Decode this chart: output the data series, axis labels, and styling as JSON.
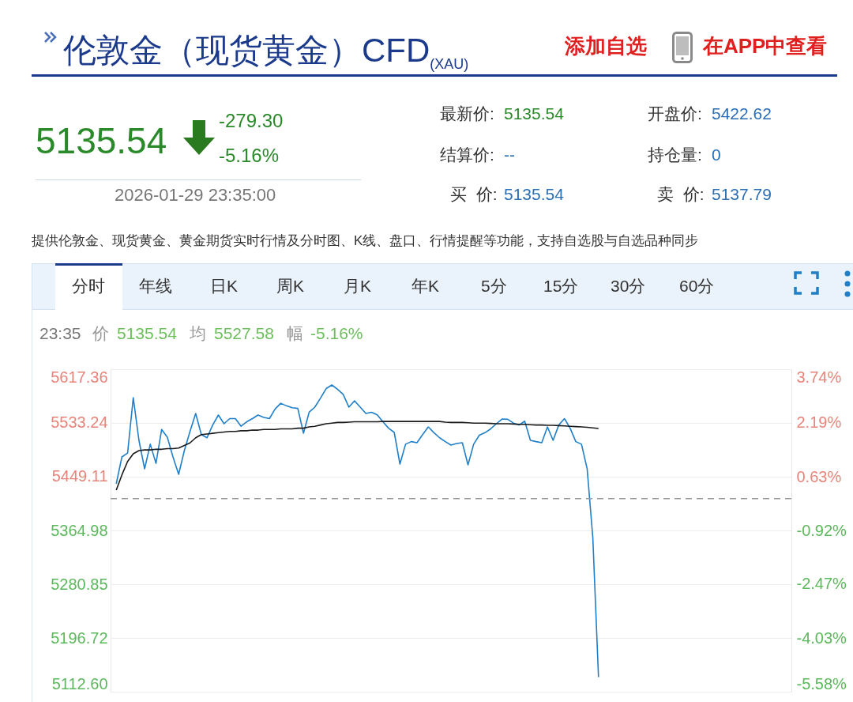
{
  "chart_data": {
    "type": "line",
    "title": "伦敦金（现货黄金）CFD$_{(XAU)}$",
    "annotations": [
      "添加自选",
      "在APP中查看",
      "5135.54",
      "-279.30",
      "-5.16%",
      "2026-01-29 23:35:00",
      "最新价:",
      "5135.54",
      "开盘价:",
      "5422.62",
      "结算价:",
      "--",
      "持仓量:",
      "0",
      "买  价:",
      "5135.54",
      "卖  价:",
      "5137.79",
      "提供伦敦金、现货黄金、黄金期货实时行情及分时图、K线、盘口、行情提醒等功能，支持自选股与自选品种同步",
      "分时",
      "年线",
      "日K",
      "周K",
      "月K",
      "年K",
      "5分",
      "15分",
      "30分",
      "60分",
      "23:35",
      "价",
      "5135.54",
      "均",
      "5527.58",
      "幅",
      "-5.16%"
    ],
    "categories": [
      null,
      null,
      null,
      null,
      null,
      null,
      null,
      null,
      null,
      null,
      null,
      null,
      null,
      null,
      null,
      null,
      null,
      null,
      null,
      null,
      null,
      null,
      null,
      null,
      null,
      null,
      null,
      null,
      null,
      null,
      null,
      null,
      null,
      null,
      null,
      null,
      null,
      null,
      null,
      null,
      null,
      null,
      null,
      null,
      null,
      null,
      null,
      null,
      null,
      null,
      null,
      null,
      null,
      null,
      null,
      null,
      null,
      null,
      null,
      null,
      null,
      null,
      null,
      null,
      null,
      null,
      null,
      null,
      null,
      null,
      null,
      null,
      null,
      null,
      null,
      null,
      null,
      null,
      null,
      null,
      null,
      null,
      null,
      null,
      null,
      null,
      null,
      null,
      null,
      null,
      null,
      null,
      null,
      null,
      null,
      null,
      null,
      null,
      null,
      null,
      null,
      null,
      null,
      null,
      null,
      null,
      null,
      null,
      null,
      null,
      null,
      null,
      null,
      null,
      null,
      null,
      null,
      null,
      null,
      null,
      null
    ],
    "series": [
      {
        "color": "#1f7fc9",
        "values": [
          null,
          5438,
          5480,
          5486,
          5572.8,
          5506,
          5461.5,
          5500,
          5470,
          5523,
          5511,
          5480,
          5452.8,
          5490,
          5520,
          5548,
          5515,
          5510,
          5530,
          5545.6,
          5532,
          5540,
          5540,
          5528,
          5535,
          5540,
          5545.6,
          5542,
          5540,
          5555,
          5564,
          5560,
          5557,
          5556,
          5517.2,
          5550,
          5558,
          5572,
          5587,
          5592.6,
          5586,
          5578,
          5558,
          5567.9,
          5558,
          5548,
          5550,
          5546,
          5535,
          5525,
          5518.4,
          5468.9,
          5500,
          5504,
          5502.3,
          5515,
          5527,
          5518,
          5510,
          5504,
          5498.6,
          5501,
          5502.3,
          5467.7,
          5500,
          5514,
          5518,
          5524,
          5532,
          5539.4,
          5539,
          5533,
          5530,
          5536,
          5506,
          5504,
          5502.3,
          5527,
          5506,
          5530,
          5540,
          5525,
          5504,
          5500,
          5461.5,
          5353.9,
          5135.5,
          null,
          null,
          null,
          null,
          null,
          null,
          null,
          null,
          null,
          null,
          null,
          null,
          null,
          null,
          null,
          null,
          null,
          null,
          null,
          null,
          null,
          null,
          null,
          null,
          null,
          null,
          null,
          null,
          null,
          null,
          null,
          null,
          null,
          null
        ]
      },
      {
        "color": "#1a1a1a",
        "values": [
          null,
          5428,
          5452,
          5473,
          5485,
          5490,
          5491,
          5491,
          5492,
          5492,
          5493,
          5493,
          5494,
          5498,
          5502,
          5510,
          5515,
          5516,
          5517,
          5518,
          5519,
          5520,
          5520,
          5521,
          5521,
          5522,
          5522,
          5523,
          5523,
          5523,
          5524,
          5524,
          5524,
          5525,
          5525,
          5527,
          5528,
          5530,
          5532,
          5533,
          5534,
          5534,
          5534.5,
          5535,
          5535,
          5535,
          5535,
          5535,
          5535.5,
          5535.5,
          5535.5,
          5535.5,
          5535.5,
          5535.5,
          5535.5,
          5535.5,
          5535.5,
          5535.5,
          5535.5,
          5534.5,
          5534,
          5534,
          5534,
          5533.5,
          5533,
          5533,
          5533,
          5532.5,
          5532,
          5532,
          5532,
          5531.5,
          5531,
          5531,
          5530.5,
          5530,
          5530,
          5529.5,
          5529.5,
          5529,
          5528.5,
          5528,
          5527.5,
          5527,
          5526.5,
          5525.5,
          5524.6,
          null,
          null,
          null,
          null,
          null,
          null,
          null,
          null,
          null,
          null,
          null,
          null,
          null,
          null,
          null,
          null,
          null,
          null,
          null,
          null,
          null,
          null,
          null,
          null,
          null,
          null,
          null,
          null,
          null,
          null,
          null,
          null,
          null,
          null
        ]
      }
    ],
    "ylim": [
      5112.6,
      5617.36
    ],
    "yticks": [
      {
        "value": 5112.6,
        "label": "5112.60"
      },
      5196.72,
      5280.85,
      5364.98,
      5449.11,
      5533.24,
      5617.36
    ],
    "y2lim": [
      -5.58,
      3.74
    ],
    "y2ticks": [
      {
        "value": -5.58,
        "label": "-5.58%"
      },
      {
        "value": -4.03,
        "label": "-4.03%"
      },
      {
        "value": -2.47,
        "label": "-2.47%"
      },
      {
        "value": -0.92,
        "label": "-0.92%"
      },
      {
        "value": 0.63,
        "label": "0.63%"
      },
      {
        "value": 2.19,
        "label": "2.19%"
      },
      {
        "value": 3.74,
        "label": "3.74%"
      }
    ],
    "ref_lines": [
      {
        "axis": "y",
        "value": 5414.84,
        "label": null,
        "color": "#9a9a9a",
        "line_style": "dashed"
      }
    ],
    "grid": "y",
    "tick_labels": "y"
  }
}
